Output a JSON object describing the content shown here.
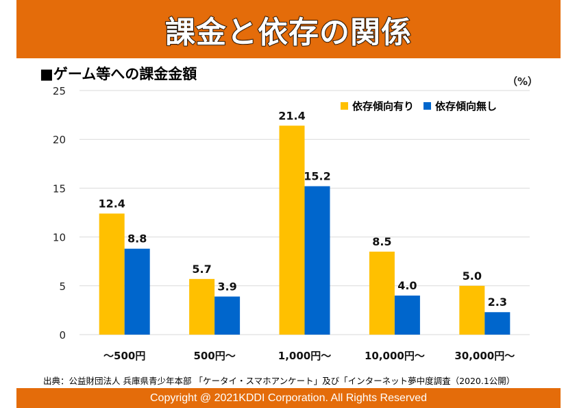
{
  "header": {
    "title": "課金と依存の関係"
  },
  "subtitle": "■ゲーム等への課金金額",
  "unit_label": "（%）",
  "source_note": "出典：公益財団法人 兵庫県青少年本部 「ケータイ・スマホアンケート」及び「インターネット夢中度調査（2020.1公開）",
  "footer": {
    "copyright": "Copyright @ 2021KDDI Corporation. All Rights Reserved"
  },
  "colors": {
    "banner": "#E46C0A",
    "series_yes": "#FFC000",
    "series_no": "#0066CC",
    "grid": "#D9D9D9"
  },
  "chart_data": {
    "type": "bar",
    "title": "■ゲーム等への課金金額",
    "xlabel": "",
    "ylabel": "（%）",
    "categories": [
      "～500円",
      "500円～",
      "1,000円～",
      "10,000円～",
      "30,000円～"
    ],
    "series": [
      {
        "name": "依存傾向有り",
        "color": "#FFC000",
        "values": [
          12.4,
          5.7,
          21.4,
          8.5,
          5.0
        ],
        "labels": [
          "12.4",
          "5.7",
          "21.4",
          "8.5",
          "5.0"
        ]
      },
      {
        "name": "依存傾向無し",
        "color": "#0066CC",
        "values": [
          8.8,
          3.9,
          15.2,
          4.0,
          2.3
        ],
        "labels": [
          "8.8",
          "3.9",
          "15.2",
          "4.0",
          "2.3"
        ]
      }
    ],
    "ylim": [
      0,
      25
    ],
    "yticks": [
      "0",
      "5",
      "10",
      "15",
      "20",
      "25"
    ],
    "grid": true,
    "legend_position": "top-right",
    "data_labels": true
  }
}
